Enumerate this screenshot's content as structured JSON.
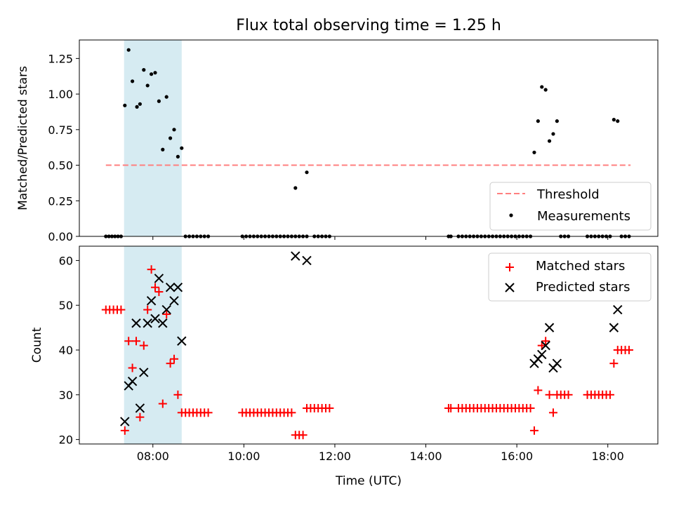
{
  "chart_data": [
    {
      "type": "scatter",
      "title": "Flux total observing time = 1.25 h",
      "xlabel": "",
      "ylabel": "Matched/Predicted stars",
      "xlim": [
        "06:23",
        "19:06"
      ],
      "ylim": [
        0,
        1.38
      ],
      "x_ticks": [
        "08:00",
        "10:00",
        "12:00",
        "14:00",
        "16:00",
        "18:00"
      ],
      "x_tick_labels_shown": false,
      "y_ticks": [
        0.0,
        0.25,
        0.5,
        0.75,
        1.0,
        1.25
      ],
      "y_tick_labels": [
        "0.00",
        "0.25",
        "0.50",
        "0.75",
        "1.00",
        "1.25"
      ],
      "shaded_span": {
        "from": "07:22",
        "to": "08:38",
        "color": "#add8e6"
      },
      "threshold": {
        "name": "Threshold",
        "value": 0.5,
        "from": "06:58",
        "to": "18:30",
        "color": "#ff7f7f"
      },
      "legend_position": "lower right",
      "legend": [
        "Threshold",
        "Measurements"
      ],
      "series": [
        {
          "name": "Measurements",
          "marker": "dot",
          "color": "#000000",
          "points": [
            [
              "06:58",
              0
            ],
            [
              "07:02",
              0
            ],
            [
              "07:06",
              0
            ],
            [
              "07:10",
              0
            ],
            [
              "07:14",
              0
            ],
            [
              "07:18",
              0
            ],
            [
              "07:23",
              0.92
            ],
            [
              "07:28",
              1.31
            ],
            [
              "07:33",
              1.09
            ],
            [
              "07:39",
              0.91
            ],
            [
              "07:43",
              0.93
            ],
            [
              "07:48",
              1.17
            ],
            [
              "07:53",
              1.06
            ],
            [
              "07:58",
              1.14
            ],
            [
              "08:03",
              1.15
            ],
            [
              "08:08",
              0.95
            ],
            [
              "08:13",
              0.61
            ],
            [
              "08:18",
              0.98
            ],
            [
              "08:23",
              0.69
            ],
            [
              "08:28",
              0.75
            ],
            [
              "08:33",
              0.56
            ],
            [
              "08:38",
              0.62
            ],
            [
              "08:43",
              0
            ],
            [
              "08:48",
              0
            ],
            [
              "08:53",
              0
            ],
            [
              "08:58",
              0
            ],
            [
              "09:03",
              0
            ],
            [
              "09:08",
              0
            ],
            [
              "09:13",
              0
            ],
            [
              "09:58",
              0
            ],
            [
              "10:03",
              0
            ],
            [
              "10:08",
              0
            ],
            [
              "10:13",
              0
            ],
            [
              "10:18",
              0
            ],
            [
              "10:23",
              0
            ],
            [
              "10:28",
              0
            ],
            [
              "10:33",
              0
            ],
            [
              "10:38",
              0
            ],
            [
              "10:43",
              0
            ],
            [
              "10:48",
              0
            ],
            [
              "10:53",
              0
            ],
            [
              "10:58",
              0
            ],
            [
              "11:03",
              0
            ],
            [
              "11:08",
              0
            ],
            [
              "11:08",
              0.34
            ],
            [
              "11:23",
              0.45
            ],
            [
              "11:13",
              0
            ],
            [
              "11:18",
              0
            ],
            [
              "11:23",
              0
            ],
            [
              "11:33",
              0
            ],
            [
              "11:38",
              0
            ],
            [
              "11:43",
              0
            ],
            [
              "11:48",
              0
            ],
            [
              "11:53",
              0
            ],
            [
              "14:30",
              0
            ],
            [
              "14:33",
              0
            ],
            [
              "14:43",
              0
            ],
            [
              "14:48",
              0
            ],
            [
              "14:53",
              0
            ],
            [
              "14:58",
              0
            ],
            [
              "15:03",
              0
            ],
            [
              "15:08",
              0
            ],
            [
              "15:13",
              0
            ],
            [
              "15:18",
              0
            ],
            [
              "15:23",
              0
            ],
            [
              "15:28",
              0
            ],
            [
              "15:33",
              0
            ],
            [
              "15:38",
              0
            ],
            [
              "15:43",
              0
            ],
            [
              "15:48",
              0
            ],
            [
              "15:53",
              0
            ],
            [
              "15:58",
              0
            ],
            [
              "16:03",
              0
            ],
            [
              "16:08",
              0
            ],
            [
              "16:13",
              0
            ],
            [
              "16:18",
              0
            ],
            [
              "16:23",
              0.59
            ],
            [
              "16:28",
              0.81
            ],
            [
              "16:33",
              1.05
            ],
            [
              "16:38",
              1.03
            ],
            [
              "16:43",
              0.67
            ],
            [
              "16:48",
              0.72
            ],
            [
              "16:53",
              0.81
            ],
            [
              "16:58",
              0
            ],
            [
              "17:03",
              0
            ],
            [
              "17:08",
              0
            ],
            [
              "17:33",
              0
            ],
            [
              "17:38",
              0
            ],
            [
              "17:43",
              0
            ],
            [
              "17:48",
              0
            ],
            [
              "17:53",
              0
            ],
            [
              "17:58",
              0
            ],
            [
              "18:03",
              0
            ],
            [
              "18:08",
              0.82
            ],
            [
              "18:13",
              0.81
            ],
            [
              "18:18",
              0
            ],
            [
              "18:23",
              0
            ],
            [
              "18:28",
              0
            ]
          ]
        }
      ]
    },
    {
      "type": "scatter",
      "title": "",
      "xlabel": "Time (UTC)",
      "ylabel": "Count",
      "xlim": [
        "06:23",
        "19:06"
      ],
      "ylim": [
        19,
        63.2
      ],
      "x_ticks": [
        "08:00",
        "10:00",
        "12:00",
        "14:00",
        "16:00",
        "18:00"
      ],
      "x_tick_labels": [
        "08:00",
        "10:00",
        "12:00",
        "14:00",
        "16:00",
        "18:00"
      ],
      "y_ticks": [
        20,
        30,
        40,
        50,
        60
      ],
      "y_tick_labels": [
        "20",
        "30",
        "40",
        "50",
        "60"
      ],
      "shaded_span": {
        "from": "07:22",
        "to": "08:38",
        "color": "#add8e6"
      },
      "legend_position": "upper right",
      "legend": [
        "Matched stars",
        "Predicted stars"
      ],
      "series": [
        {
          "name": "Matched stars",
          "marker": "plus",
          "color": "#ff0000",
          "points": [
            [
              "06:58",
              49
            ],
            [
              "07:03",
              49
            ],
            [
              "07:08",
              49
            ],
            [
              "07:13",
              49
            ],
            [
              "07:18",
              49
            ],
            [
              "07:23",
              22
            ],
            [
              "07:28",
              42
            ],
            [
              "07:33",
              36
            ],
            [
              "07:38",
              42
            ],
            [
              "07:43",
              25
            ],
            [
              "07:48",
              41
            ],
            [
              "07:53",
              49
            ],
            [
              "07:58",
              58
            ],
            [
              "08:03",
              54
            ],
            [
              "08:08",
              53
            ],
            [
              "08:13",
              28
            ],
            [
              "08:18",
              48
            ],
            [
              "08:23",
              37
            ],
            [
              "08:28",
              38
            ],
            [
              "08:33",
              30
            ],
            [
              "08:38",
              26
            ],
            [
              "08:43",
              26
            ],
            [
              "08:48",
              26
            ],
            [
              "08:53",
              26
            ],
            [
              "08:58",
              26
            ],
            [
              "09:03",
              26
            ],
            [
              "09:08",
              26
            ],
            [
              "09:13",
              26
            ],
            [
              "09:58",
              26
            ],
            [
              "10:03",
              26
            ],
            [
              "10:08",
              26
            ],
            [
              "10:13",
              26
            ],
            [
              "10:18",
              26
            ],
            [
              "10:23",
              26
            ],
            [
              "10:28",
              26
            ],
            [
              "10:33",
              26
            ],
            [
              "10:38",
              26
            ],
            [
              "10:43",
              26
            ],
            [
              "10:48",
              26
            ],
            [
              "10:53",
              26
            ],
            [
              "10:58",
              26
            ],
            [
              "11:03",
              26
            ],
            [
              "11:08",
              21
            ],
            [
              "11:13",
              21
            ],
            [
              "11:18",
              21
            ],
            [
              "11:23",
              27
            ],
            [
              "11:28",
              27
            ],
            [
              "11:33",
              27
            ],
            [
              "11:38",
              27
            ],
            [
              "11:43",
              27
            ],
            [
              "11:48",
              27
            ],
            [
              "11:53",
              27
            ],
            [
              "14:30",
              27
            ],
            [
              "14:33",
              27
            ],
            [
              "14:43",
              27
            ],
            [
              "14:48",
              27
            ],
            [
              "14:53",
              27
            ],
            [
              "14:58",
              27
            ],
            [
              "15:03",
              27
            ],
            [
              "15:08",
              27
            ],
            [
              "15:13",
              27
            ],
            [
              "15:18",
              27
            ],
            [
              "15:23",
              27
            ],
            [
              "15:28",
              27
            ],
            [
              "15:33",
              27
            ],
            [
              "15:38",
              27
            ],
            [
              "15:43",
              27
            ],
            [
              "15:48",
              27
            ],
            [
              "15:53",
              27
            ],
            [
              "15:58",
              27
            ],
            [
              "16:03",
              27
            ],
            [
              "16:08",
              27
            ],
            [
              "16:13",
              27
            ],
            [
              "16:18",
              27
            ],
            [
              "16:23",
              22
            ],
            [
              "16:28",
              31
            ],
            [
              "16:33",
              41
            ],
            [
              "16:38",
              42
            ],
            [
              "16:43",
              30
            ],
            [
              "16:48",
              26
            ],
            [
              "16:53",
              30
            ],
            [
              "16:58",
              30
            ],
            [
              "17:03",
              30
            ],
            [
              "17:08",
              30
            ],
            [
              "17:33",
              30
            ],
            [
              "17:38",
              30
            ],
            [
              "17:43",
              30
            ],
            [
              "17:48",
              30
            ],
            [
              "17:53",
              30
            ],
            [
              "17:58",
              30
            ],
            [
              "18:03",
              30
            ],
            [
              "18:08",
              37
            ],
            [
              "18:13",
              40
            ],
            [
              "18:18",
              40
            ],
            [
              "18:23",
              40
            ],
            [
              "18:28",
              40
            ]
          ]
        },
        {
          "name": "Predicted stars",
          "marker": "x",
          "color": "#000000",
          "points": [
            [
              "07:23",
              24
            ],
            [
              "07:28",
              32
            ],
            [
              "07:33",
              33
            ],
            [
              "07:38",
              46
            ],
            [
              "07:43",
              27
            ],
            [
              "07:48",
              35
            ],
            [
              "07:53",
              46
            ],
            [
              "07:58",
              51
            ],
            [
              "08:03",
              47
            ],
            [
              "08:08",
              56
            ],
            [
              "08:13",
              46
            ],
            [
              "08:18",
              49
            ],
            [
              "08:23",
              54
            ],
            [
              "08:28",
              51
            ],
            [
              "08:33",
              54
            ],
            [
              "08:38",
              42
            ],
            [
              "11:08",
              61
            ],
            [
              "11:23",
              60
            ],
            [
              "16:23",
              37
            ],
            [
              "16:28",
              38
            ],
            [
              "16:33",
              39
            ],
            [
              "16:38",
              41
            ],
            [
              "16:43",
              45
            ],
            [
              "16:48",
              36
            ],
            [
              "16:53",
              37
            ],
            [
              "18:08",
              45
            ],
            [
              "18:13",
              49
            ]
          ]
        }
      ]
    }
  ]
}
